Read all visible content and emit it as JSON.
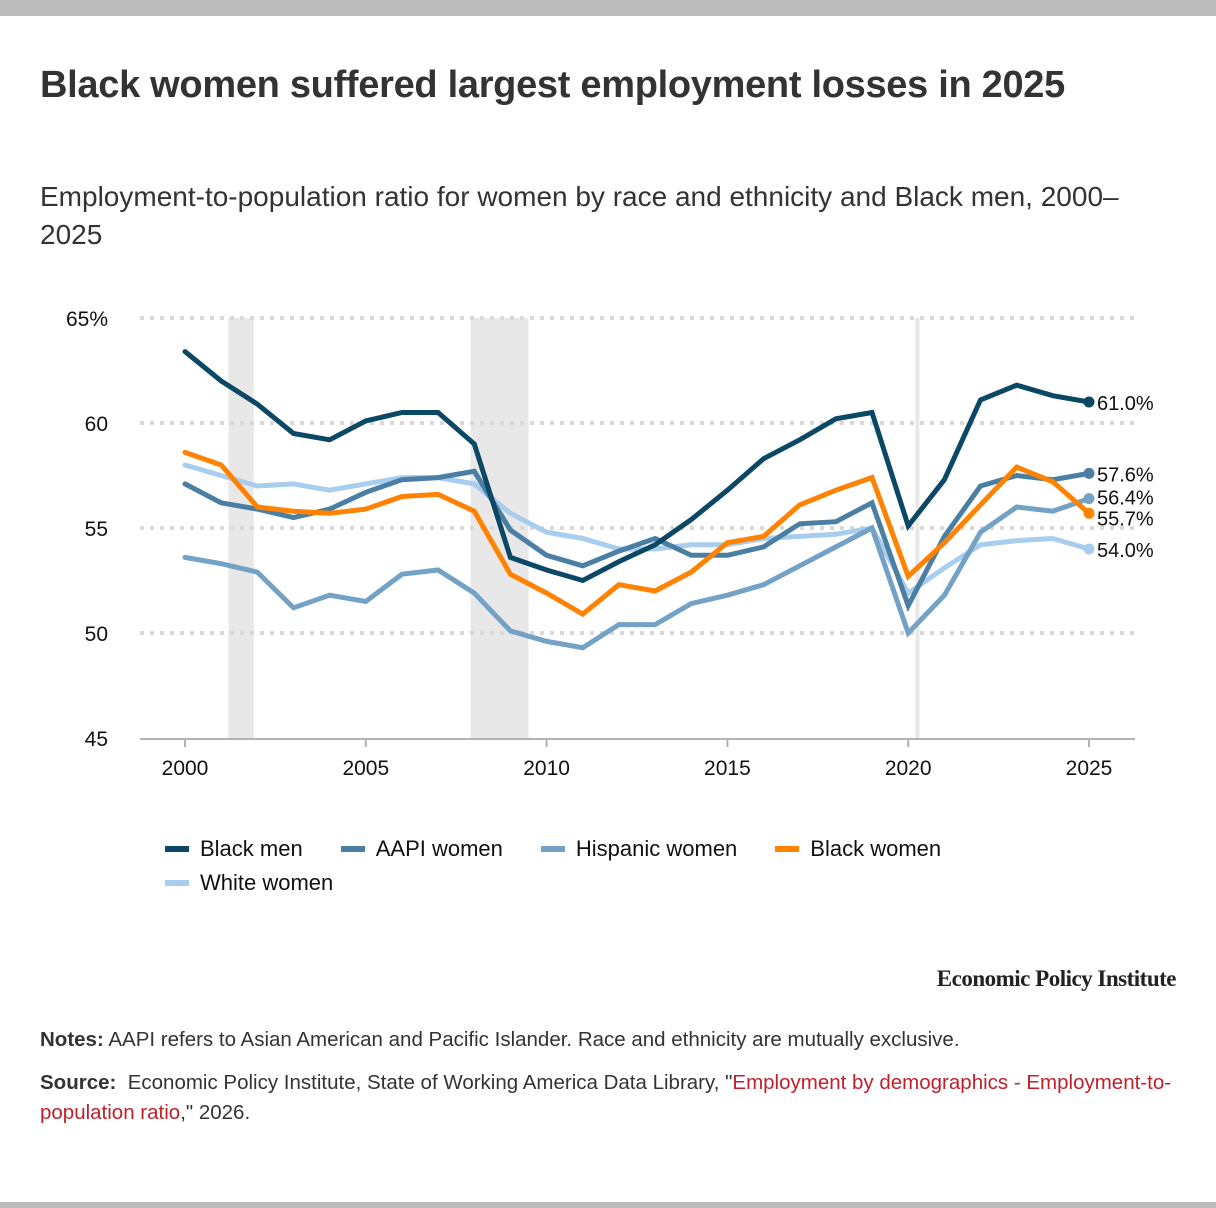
{
  "header": {
    "title": "Black women suffered largest employment losses in 2025",
    "subtitle": "Employment-to-population ratio for women by race and ethnicity and Black men, 2000–2025"
  },
  "chart_data": {
    "type": "line",
    "title": "Black women suffered largest employment losses in 2025",
    "subtitle": "Employment-to-population ratio for women by race and ethnicity and Black men, 2000–2025",
    "xlabel": "",
    "ylabel": "",
    "x": [
      2000,
      2001,
      2002,
      2003,
      2004,
      2005,
      2006,
      2007,
      2008,
      2009,
      2010,
      2011,
      2012,
      2013,
      2014,
      2015,
      2016,
      2017,
      2018,
      2019,
      2020,
      2021,
      2022,
      2023,
      2024,
      2025
    ],
    "xlim": [
      1997.5,
      2026.3
    ],
    "ylim": [
      45,
      65
    ],
    "x_ticks": [
      2000,
      2005,
      2010,
      2015,
      2020,
      2025
    ],
    "x_tick_labels": [
      "2000",
      "2005",
      "2010",
      "2015",
      "2020",
      "2025"
    ],
    "y_ticks": [
      45,
      50,
      55,
      60,
      65
    ],
    "y_tick_labels": [
      "45",
      "50",
      "55",
      "60",
      "65%"
    ],
    "grid": "horizontal-dotted",
    "legend_position": "bottom",
    "recession_bands": [
      [
        2001.2,
        2001.9
      ],
      [
        2007.9,
        2009.5
      ],
      [
        2020.2,
        2020.3
      ]
    ],
    "series": [
      {
        "name": "Black men",
        "color": "#0b4866",
        "end_label": "61.0%",
        "values": [
          63.4,
          62.0,
          60.9,
          59.5,
          59.2,
          60.1,
          60.5,
          60.5,
          59.0,
          53.6,
          53.0,
          52.5,
          53.4,
          54.2,
          55.4,
          56.8,
          58.3,
          59.2,
          60.2,
          60.5,
          55.1,
          57.3,
          61.1,
          61.8,
          61.3,
          61.0
        ]
      },
      {
        "name": "AAPI women",
        "color": "#4a7fa3",
        "end_label": "57.6%",
        "values": [
          57.1,
          56.2,
          55.9,
          55.5,
          55.9,
          56.7,
          57.3,
          57.4,
          57.7,
          54.9,
          53.7,
          53.2,
          53.9,
          54.5,
          53.7,
          53.7,
          54.1,
          55.2,
          55.3,
          56.2,
          51.3,
          54.6,
          57.0,
          57.5,
          57.3,
          57.6
        ]
      },
      {
        "name": "Hispanic women",
        "color": "#73a2c6",
        "end_label": "56.4%",
        "values": [
          53.6,
          53.3,
          52.9,
          51.2,
          51.8,
          51.5,
          52.8,
          53.0,
          51.9,
          50.1,
          49.6,
          49.3,
          50.4,
          50.4,
          51.4,
          51.8,
          52.3,
          53.2,
          54.1,
          55.0,
          50.0,
          51.8,
          54.8,
          56.0,
          55.8,
          56.4
        ]
      },
      {
        "name": "Black women",
        "color": "#ff8200",
        "end_label": "55.7%",
        "values": [
          58.6,
          58.0,
          56.0,
          55.8,
          55.7,
          55.9,
          56.5,
          56.6,
          55.8,
          52.8,
          51.9,
          50.9,
          52.3,
          52.0,
          52.9,
          54.3,
          54.6,
          56.1,
          56.8,
          57.4,
          52.7,
          54.3,
          56.1,
          57.9,
          57.2,
          55.7
        ]
      },
      {
        "name": "White women",
        "color": "#a8cdee",
        "end_label": "54.0%",
        "values": [
          58.0,
          57.5,
          57.0,
          57.1,
          56.8,
          57.1,
          57.4,
          57.4,
          57.1,
          55.7,
          54.8,
          54.5,
          54.0,
          54.0,
          54.2,
          54.2,
          54.5,
          54.6,
          54.7,
          55.0,
          51.9,
          53.1,
          54.2,
          54.4,
          54.5,
          54.0
        ]
      }
    ]
  },
  "legend": {
    "rows": [
      [
        {
          "label": "Black men",
          "color": "#0b4866"
        },
        {
          "label": "AAPI women",
          "color": "#4a7fa3"
        },
        {
          "label": "Hispanic women",
          "color": "#73a2c6"
        },
        {
          "label": "Black women",
          "color": "#ff8200"
        }
      ],
      [
        {
          "label": "White women",
          "color": "#a8cdee"
        }
      ]
    ]
  },
  "footer": {
    "brand": "Economic Policy Institute",
    "notes_label": "Notes:",
    "notes_text": " AAPI refers to Asian American and Pacific Islander. Race and ethnicity are mutually exclusive.",
    "source_label": "Source:",
    "source_text": "  Economic Policy Institute, State of Working America Data Library, \"",
    "source_link": "Employment by demographics - Employment-to-population ratio",
    "source_suffix": ",\" 2026."
  }
}
